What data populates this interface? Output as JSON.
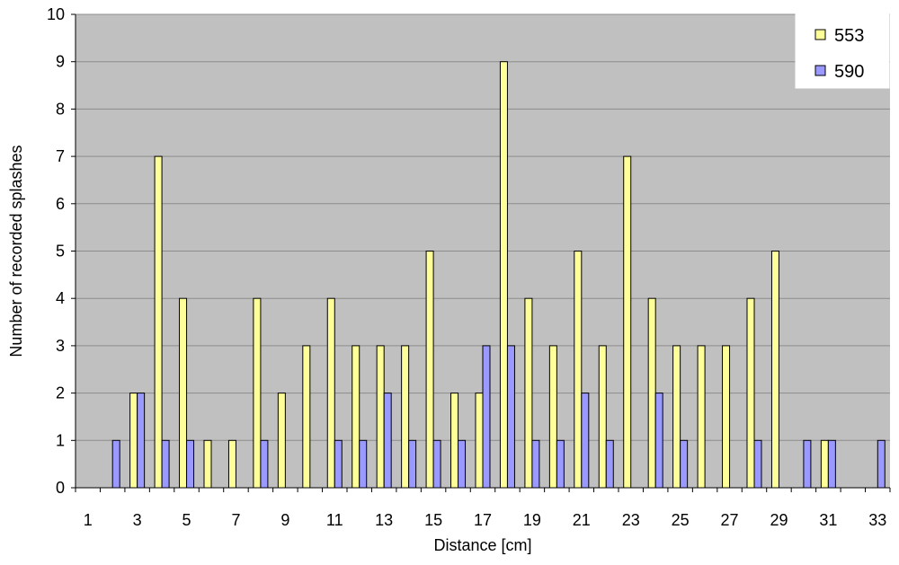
{
  "colors": {
    "plot_background": "#c0c0c0",
    "gridline": "#8c8c8c",
    "series_553": "#ffff99",
    "series_590": "#9999ff",
    "bar_outline": "#000000"
  },
  "chart_data": {
    "type": "bar",
    "title": "",
    "xlabel": "Distance [cm]",
    "ylabel": "Number of recorded splashes",
    "ylim": [
      0,
      10
    ],
    "yticks": [
      "0",
      "1",
      "2",
      "3",
      "4",
      "5",
      "6",
      "7",
      "8",
      "9",
      "10"
    ],
    "categories": [
      "1",
      "2",
      "3",
      "4",
      "5",
      "6",
      "7",
      "8",
      "9",
      "10",
      "11",
      "12",
      "13",
      "14",
      "15",
      "16",
      "17",
      "18",
      "19",
      "20",
      "21",
      "22",
      "23",
      "24",
      "25",
      "26",
      "27",
      "28",
      "29",
      "30",
      "31",
      "32",
      "33"
    ],
    "xtick_labels": [
      "1",
      "",
      "3",
      "",
      "5",
      "",
      "7",
      "",
      "9",
      "",
      "11",
      "",
      "13",
      "",
      "15",
      "",
      "17",
      "",
      "19",
      "",
      "21",
      "",
      "23",
      "",
      "25",
      "",
      "27",
      "",
      "29",
      "",
      "31",
      "",
      "33"
    ],
    "series": [
      {
        "name": "553",
        "values": [
          0,
          0,
          2,
          7,
          4,
          1,
          1,
          4,
          2,
          3,
          4,
          3,
          3,
          3,
          5,
          2,
          2,
          9,
          4,
          3,
          5,
          3,
          7,
          4,
          3,
          3,
          3,
          4,
          5,
          0,
          1,
          0,
          0
        ]
      },
      {
        "name": "590",
        "values": [
          0,
          1,
          2,
          1,
          1,
          0,
          0,
          1,
          0,
          0,
          1,
          1,
          2,
          1,
          1,
          1,
          3,
          3,
          1,
          1,
          2,
          1,
          0,
          2,
          1,
          0,
          0,
          1,
          0,
          1,
          1,
          0,
          1
        ]
      }
    ],
    "grid": true,
    "legend_position": "top-right"
  }
}
